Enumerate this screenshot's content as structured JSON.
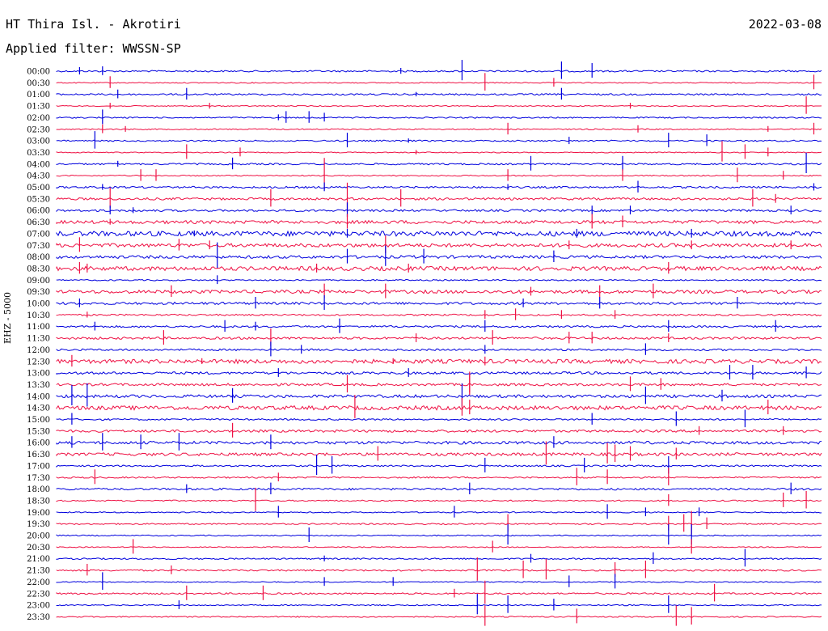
{
  "header": {
    "station": "HT Thira Isl. - Akrotiri",
    "date": "2022-03-08",
    "filter": "Applied filter: WWSSN-SP"
  },
  "channel_label": "EHZ - 5000",
  "colors": {
    "even_trace": "#0000dd",
    "odd_trace": "#ee1144"
  },
  "time_labels": [
    "00:00",
    "00:30",
    "01:00",
    "01:30",
    "02:00",
    "02:30",
    "03:00",
    "03:30",
    "04:00",
    "04:30",
    "05:00",
    "05:30",
    "06:00",
    "06:30",
    "07:00",
    "07:30",
    "08:00",
    "08:30",
    "09:00",
    "09:30",
    "10:00",
    "10:30",
    "11:00",
    "11:30",
    "12:00",
    "12:30",
    "13:00",
    "13:30",
    "14:00",
    "14:30",
    "15:00",
    "15:30",
    "16:00",
    "16:30",
    "17:00",
    "17:30",
    "18:00",
    "18:30",
    "19:00",
    "19:30",
    "20:00",
    "20:30",
    "21:00",
    "21:30",
    "22:00",
    "22:30",
    "23:00",
    "23:30"
  ],
  "traces": [
    {
      "noise": 1,
      "events": [
        [
          0.03,
          5
        ],
        [
          0.06,
          6
        ],
        [
          0.45,
          4
        ],
        [
          0.53,
          14
        ],
        [
          0.66,
          12
        ],
        [
          0.7,
          10
        ]
      ]
    },
    {
      "noise": 0.6,
      "events": [
        [
          0.07,
          8
        ],
        [
          0.56,
          12
        ],
        [
          0.65,
          6
        ],
        [
          0.99,
          10
        ]
      ]
    },
    {
      "noise": 1,
      "events": [
        [
          0.08,
          6
        ],
        [
          0.17,
          8
        ],
        [
          0.47,
          3
        ],
        [
          0.66,
          8
        ]
      ]
    },
    {
      "noise": 0.6,
      "events": [
        [
          0.07,
          4
        ],
        [
          0.2,
          4
        ],
        [
          0.75,
          4
        ],
        [
          0.98,
          12
        ]
      ]
    },
    {
      "noise": 0.8,
      "events": [
        [
          0.06,
          10
        ],
        [
          0.29,
          4
        ],
        [
          0.3,
          8
        ],
        [
          0.33,
          8
        ],
        [
          0.35,
          6
        ]
      ]
    },
    {
      "noise": 0.7,
      "events": [
        [
          0.06,
          6
        ],
        [
          0.09,
          4
        ],
        [
          0.59,
          8
        ],
        [
          0.76,
          5
        ],
        [
          0.93,
          4
        ],
        [
          0.99,
          8
        ]
      ]
    },
    {
      "noise": 0.9,
      "events": [
        [
          0.05,
          12
        ],
        [
          0.38,
          10
        ],
        [
          0.46,
          3
        ],
        [
          0.67,
          5
        ],
        [
          0.8,
          10
        ],
        [
          0.85,
          8
        ]
      ]
    },
    {
      "noise": 0.6,
      "events": [
        [
          0.17,
          10
        ],
        [
          0.24,
          6
        ],
        [
          0.47,
          3
        ],
        [
          0.87,
          14
        ],
        [
          0.9,
          10
        ],
        [
          0.93,
          6
        ]
      ]
    },
    {
      "noise": 1,
      "events": [
        [
          0.08,
          4
        ],
        [
          0.23,
          8
        ],
        [
          0.62,
          10
        ],
        [
          0.74,
          10
        ],
        [
          0.98,
          14
        ]
      ]
    },
    {
      "noise": 0.7,
      "events": [
        [
          0.11,
          8
        ],
        [
          0.13,
          8
        ],
        [
          0.35,
          22
        ],
        [
          0.59,
          8
        ],
        [
          0.74,
          8
        ],
        [
          0.89,
          10
        ],
        [
          0.95,
          6
        ]
      ]
    },
    {
      "noise": 1.2,
      "events": [
        [
          0.06,
          4
        ],
        [
          0.35,
          6
        ],
        [
          0.59,
          4
        ],
        [
          0.76,
          8
        ],
        [
          0.99,
          5
        ]
      ]
    },
    {
      "noise": 1.4,
      "events": [
        [
          0.07,
          14
        ],
        [
          0.28,
          12
        ],
        [
          0.38,
          20
        ],
        [
          0.45,
          12
        ],
        [
          0.91,
          12
        ],
        [
          0.94,
          6
        ]
      ]
    },
    {
      "noise": 1.3,
      "events": [
        [
          0.07,
          6
        ],
        [
          0.1,
          4
        ],
        [
          0.38,
          10
        ],
        [
          0.7,
          6
        ],
        [
          0.75,
          6
        ],
        [
          0.96,
          6
        ]
      ]
    },
    {
      "noise": 2,
      "events": [
        [
          0.07,
          4
        ],
        [
          0.38,
          10
        ],
        [
          0.7,
          10
        ],
        [
          0.74,
          8
        ]
      ]
    },
    {
      "noise": 3,
      "events": [
        [
          0.18,
          4
        ],
        [
          0.38,
          6
        ],
        [
          0.68,
          6
        ],
        [
          0.83,
          6
        ]
      ]
    },
    {
      "noise": 2.2,
      "events": [
        [
          0.03,
          10
        ],
        [
          0.16,
          8
        ],
        [
          0.2,
          6
        ],
        [
          0.43,
          12
        ],
        [
          0.67,
          6
        ],
        [
          0.83,
          6
        ],
        [
          0.96,
          6
        ]
      ]
    },
    {
      "noise": 1.8,
      "events": [
        [
          0.21,
          18
        ],
        [
          0.38,
          10
        ],
        [
          0.43,
          14
        ],
        [
          0.48,
          10
        ],
        [
          0.65,
          8
        ]
      ]
    },
    {
      "noise": 2.5,
      "events": [
        [
          0.03,
          8
        ],
        [
          0.04,
          6
        ],
        [
          0.34,
          6
        ],
        [
          0.46,
          6
        ],
        [
          0.8,
          8
        ]
      ]
    },
    {
      "noise": 0.8,
      "events": [
        [
          0.21,
          6
        ]
      ]
    },
    {
      "noise": 2,
      "events": [
        [
          0.15,
          8
        ],
        [
          0.35,
          10
        ],
        [
          0.43,
          10
        ],
        [
          0.62,
          6
        ],
        [
          0.71,
          8
        ],
        [
          0.78,
          10
        ]
      ]
    },
    {
      "noise": 1.5,
      "events": [
        [
          0.03,
          6
        ],
        [
          0.26,
          8
        ],
        [
          0.35,
          10
        ],
        [
          0.61,
          6
        ],
        [
          0.71,
          8
        ],
        [
          0.89,
          8
        ]
      ]
    },
    {
      "noise": 1,
      "events": [
        [
          0.04,
          4
        ],
        [
          0.56,
          6
        ],
        [
          0.6,
          8
        ],
        [
          0.66,
          6
        ],
        [
          0.73,
          6
        ]
      ]
    },
    {
      "noise": 1.2,
      "events": [
        [
          0.05,
          6
        ],
        [
          0.22,
          8
        ],
        [
          0.26,
          6
        ],
        [
          0.37,
          10
        ],
        [
          0.56,
          8
        ],
        [
          0.8,
          8
        ],
        [
          0.94,
          8
        ]
      ]
    },
    {
      "noise": 1.4,
      "events": [
        [
          0.14,
          10
        ],
        [
          0.28,
          12
        ],
        [
          0.47,
          6
        ],
        [
          0.57,
          10
        ],
        [
          0.67,
          8
        ],
        [
          0.7,
          8
        ],
        [
          0.8,
          6
        ]
      ]
    },
    {
      "noise": 1.2,
      "events": [
        [
          0.28,
          10
        ],
        [
          0.32,
          6
        ],
        [
          0.56,
          6
        ],
        [
          0.77,
          8
        ]
      ]
    },
    {
      "noise": 2.5,
      "events": [
        [
          0.02,
          8
        ],
        [
          0.19,
          4
        ],
        [
          0.44,
          4
        ],
        [
          0.56,
          6
        ]
      ]
    },
    {
      "noise": 1.5,
      "events": [
        [
          0.29,
          6
        ],
        [
          0.46,
          6
        ],
        [
          0.88,
          10
        ],
        [
          0.91,
          10
        ],
        [
          0.98,
          8
        ]
      ]
    },
    {
      "noise": 1.5,
      "events": [
        [
          0.38,
          12
        ],
        [
          0.54,
          16
        ],
        [
          0.54,
          12
        ],
        [
          0.75,
          10
        ],
        [
          0.79,
          8
        ]
      ]
    },
    {
      "noise": 1.8,
      "events": [
        [
          0.02,
          14
        ],
        [
          0.04,
          16
        ],
        [
          0.23,
          10
        ],
        [
          0.53,
          16
        ],
        [
          0.77,
          12
        ],
        [
          0.87,
          8
        ]
      ]
    },
    {
      "noise": 2.5,
      "events": [
        [
          0.39,
          16
        ],
        [
          0.53,
          12
        ],
        [
          0.54,
          10
        ],
        [
          0.93,
          10
        ]
      ]
    },
    {
      "noise": 1,
      "events": [
        [
          0.02,
          8
        ],
        [
          0.7,
          8
        ],
        [
          0.81,
          10
        ],
        [
          0.9,
          12
        ]
      ]
    },
    {
      "noise": 1.5,
      "events": [
        [
          0.23,
          10
        ],
        [
          0.84,
          6
        ],
        [
          0.95,
          6
        ]
      ]
    },
    {
      "noise": 1.8,
      "events": [
        [
          0.02,
          8
        ],
        [
          0.06,
          12
        ],
        [
          0.11,
          10
        ],
        [
          0.16,
          12
        ],
        [
          0.28,
          10
        ],
        [
          0.65,
          8
        ]
      ]
    },
    {
      "noise": 1.8,
      "events": [
        [
          0.42,
          10
        ],
        [
          0.64,
          16
        ],
        [
          0.72,
          14
        ],
        [
          0.73,
          12
        ],
        [
          0.75,
          10
        ],
        [
          0.81,
          8
        ]
      ]
    },
    {
      "noise": 1,
      "events": [
        [
          0.34,
          14
        ],
        [
          0.36,
          12
        ],
        [
          0.56,
          10
        ],
        [
          0.69,
          10
        ],
        [
          0.8,
          12
        ]
      ]
    },
    {
      "noise": 0.9,
      "events": [
        [
          0.05,
          10
        ],
        [
          0.29,
          6
        ],
        [
          0.68,
          12
        ],
        [
          0.72,
          10
        ],
        [
          0.8,
          12
        ]
      ]
    },
    {
      "noise": 1.2,
      "events": [
        [
          0.17,
          6
        ],
        [
          0.28,
          8
        ],
        [
          0.54,
          8
        ],
        [
          0.96,
          8
        ]
      ]
    },
    {
      "noise": 0.8,
      "events": [
        [
          0.26,
          16
        ],
        [
          0.8,
          8
        ],
        [
          0.95,
          10
        ],
        [
          0.98,
          12
        ]
      ]
    },
    {
      "noise": 0.7,
      "events": [
        [
          0.29,
          8
        ],
        [
          0.52,
          8
        ],
        [
          0.72,
          10
        ],
        [
          0.77,
          6
        ],
        [
          0.84,
          6
        ]
      ]
    },
    {
      "noise": 0.8,
      "events": [
        [
          0.59,
          12
        ],
        [
          0.8,
          10
        ],
        [
          0.82,
          12
        ],
        [
          0.83,
          16
        ],
        [
          0.85,
          8
        ]
      ]
    },
    {
      "noise": 0.7,
      "events": [
        [
          0.33,
          10
        ],
        [
          0.59,
          14
        ],
        [
          0.8,
          14
        ],
        [
          0.83,
          14
        ]
      ]
    },
    {
      "noise": 0.6,
      "events": [
        [
          0.1,
          10
        ],
        [
          0.57,
          8
        ],
        [
          0.83,
          10
        ]
      ]
    },
    {
      "noise": 0.9,
      "events": [
        [
          0.35,
          4
        ],
        [
          0.62,
          6
        ],
        [
          0.78,
          8
        ],
        [
          0.9,
          12
        ]
      ]
    },
    {
      "noise": 1,
      "events": [
        [
          0.04,
          8
        ],
        [
          0.15,
          6
        ],
        [
          0.55,
          16
        ],
        [
          0.61,
          12
        ],
        [
          0.64,
          14
        ],
        [
          0.73,
          10
        ],
        [
          0.77,
          12
        ]
      ]
    },
    {
      "noise": 0.6,
      "events": [
        [
          0.06,
          12
        ],
        [
          0.35,
          6
        ],
        [
          0.44,
          6
        ],
        [
          0.67,
          8
        ],
        [
          0.73,
          10
        ]
      ]
    },
    {
      "noise": 1,
      "events": [
        [
          0.17,
          10
        ],
        [
          0.27,
          10
        ],
        [
          0.52,
          6
        ],
        [
          0.56,
          16
        ],
        [
          0.86,
          12
        ]
      ]
    },
    {
      "noise": 0.7,
      "events": [
        [
          0.16,
          6
        ],
        [
          0.55,
          14
        ],
        [
          0.59,
          12
        ],
        [
          0.65,
          8
        ],
        [
          0.8,
          12
        ]
      ]
    },
    {
      "noise": 0.7,
      "events": [
        [
          0.56,
          14
        ],
        [
          0.68,
          10
        ],
        [
          0.81,
          14
        ],
        [
          0.83,
          12
        ]
      ]
    }
  ]
}
